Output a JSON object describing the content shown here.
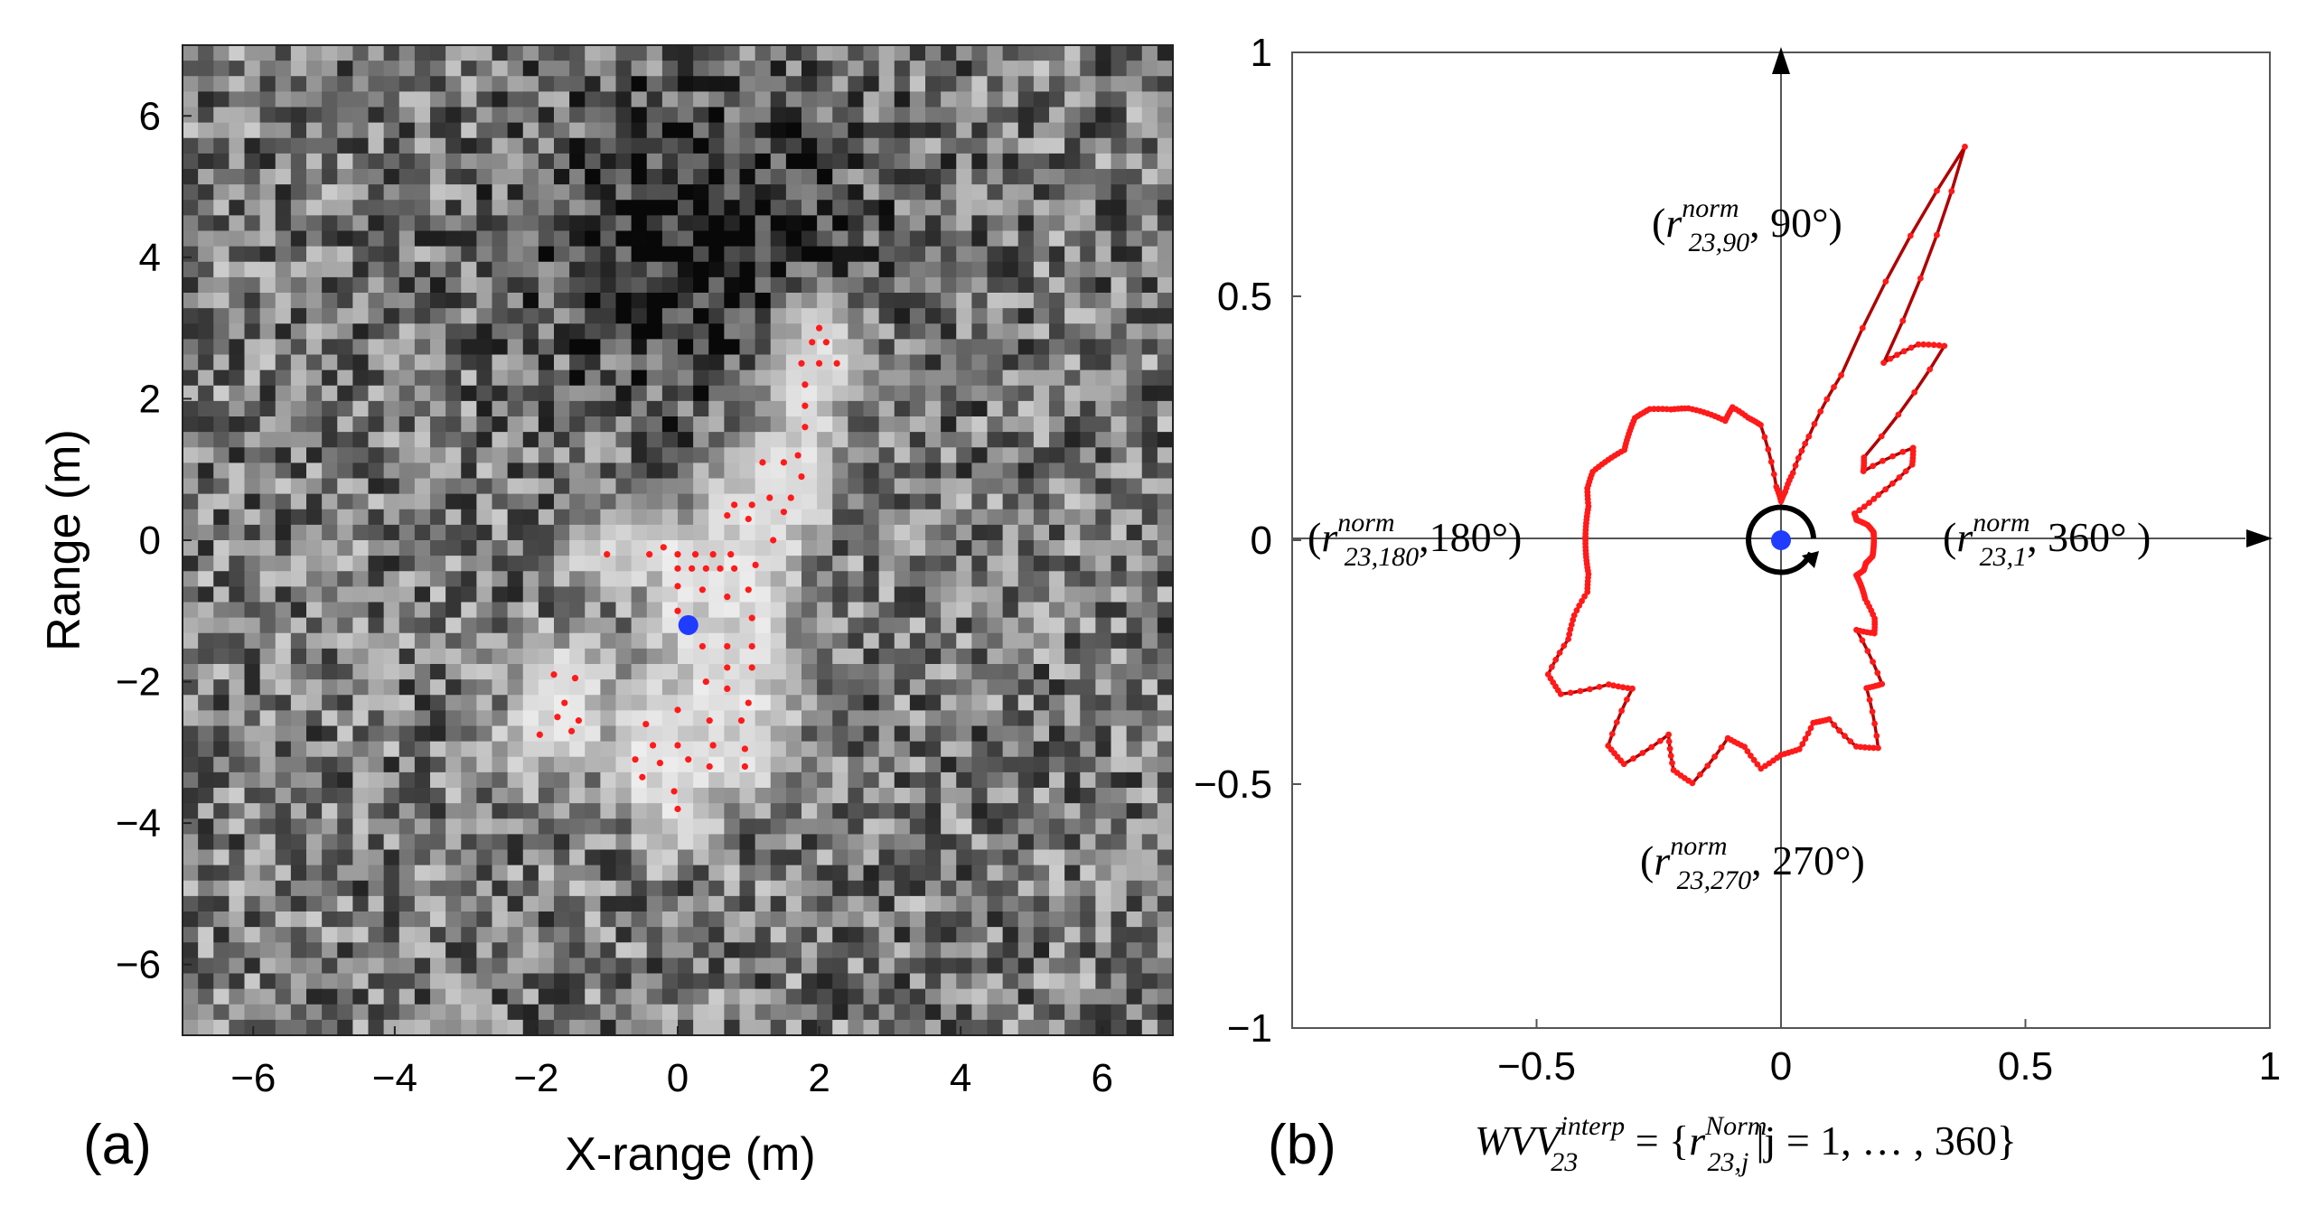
{
  "chart_data": [
    {
      "type": "heatmap",
      "panel_label": "(a)",
      "xlabel": "X-range (m)",
      "ylabel": "Range (m)",
      "xlim": [
        -7,
        7
      ],
      "ylim": [
        -7,
        7
      ],
      "xticks": [
        "−6",
        "−4",
        "−2",
        "0",
        "2",
        "4",
        "6"
      ],
      "yticks": [
        "6",
        "4",
        "2",
        "0",
        "−2",
        "−4",
        "−6"
      ],
      "colormap": "grayscale",
      "center_point": {
        "x": 0.15,
        "y": -1.2,
        "color": "#1f3cff"
      },
      "marker_color": "#ff1a1a",
      "red_points": [
        [
          2.0,
          3.0
        ],
        [
          1.9,
          2.8
        ],
        [
          2.1,
          2.8
        ],
        [
          1.75,
          2.5
        ],
        [
          2.0,
          2.5
        ],
        [
          2.25,
          2.5
        ],
        [
          1.8,
          2.2
        ],
        [
          1.8,
          1.9
        ],
        [
          1.8,
          1.6
        ],
        [
          1.7,
          1.2
        ],
        [
          1.75,
          0.9
        ],
        [
          1.5,
          1.1
        ],
        [
          1.2,
          1.1
        ],
        [
          1.6,
          0.6
        ],
        [
          1.3,
          0.6
        ],
        [
          1.05,
          0.5
        ],
        [
          0.8,
          0.5
        ],
        [
          1.5,
          0.4
        ],
        [
          0.7,
          0.35
        ],
        [
          1.0,
          0.3
        ],
        [
          1.35,
          0.0
        ],
        [
          -1.0,
          -0.2
        ],
        [
          -0.4,
          -0.2
        ],
        [
          0.0,
          -0.2
        ],
        [
          0.25,
          -0.2
        ],
        [
          0.5,
          -0.2
        ],
        [
          0.75,
          -0.2
        ],
        [
          1.1,
          -0.35
        ],
        [
          0.0,
          -0.4
        ],
        [
          0.2,
          -0.4
        ],
        [
          0.4,
          -0.4
        ],
        [
          0.6,
          -0.4
        ],
        [
          0.8,
          -0.4
        ],
        [
          -0.2,
          -0.1
        ],
        [
          0.0,
          -0.65
        ],
        [
          0.35,
          -0.7
        ],
        [
          0.7,
          -0.8
        ],
        [
          1.0,
          -0.7
        ],
        [
          0.0,
          -1.0
        ],
        [
          1.05,
          -1.1
        ],
        [
          0.35,
          -1.5
        ],
        [
          0.7,
          -1.5
        ],
        [
          1.05,
          -1.5
        ],
        [
          0.7,
          -1.8
        ],
        [
          1.05,
          -1.8
        ],
        [
          0.4,
          -2.0
        ],
        [
          0.7,
          -2.1
        ],
        [
          1.0,
          -2.3
        ],
        [
          -1.75,
          -1.9
        ],
        [
          -1.45,
          -1.95
        ],
        [
          -1.6,
          -2.3
        ],
        [
          -1.4,
          -2.55
        ],
        [
          -1.7,
          -2.5
        ],
        [
          -1.5,
          -2.7
        ],
        [
          -1.95,
          -2.75
        ],
        [
          0.0,
          -2.4
        ],
        [
          0.45,
          -2.55
        ],
        [
          0.9,
          -2.55
        ],
        [
          -0.45,
          -2.6
        ],
        [
          -0.35,
          -2.9
        ],
        [
          0.0,
          -2.9
        ],
        [
          0.5,
          -2.9
        ],
        [
          0.95,
          -2.95
        ],
        [
          -0.6,
          -3.1
        ],
        [
          0.15,
          -3.1
        ],
        [
          -0.25,
          -3.15
        ],
        [
          0.45,
          -3.2
        ],
        [
          0.95,
          -3.2
        ],
        [
          -0.5,
          -3.35
        ],
        [
          -0.05,
          -3.55
        ],
        [
          0.0,
          -3.8
        ]
      ]
    },
    {
      "type": "polar-profile",
      "panel_label": "(b)",
      "xlim": [
        -1,
        1
      ],
      "ylim": [
        -1,
        1
      ],
      "xticks": [
        "−0.5",
        "0",
        "0.5",
        "1"
      ],
      "yticks": [
        "1",
        "0.5",
        "0",
        "−0.5",
        "−1"
      ],
      "line_color": "#b00000",
      "marker_color": "#ff1a1a",
      "center_color": "#1f3cff",
      "n_points": 360,
      "profile": [
        [
          0,
          0.19
        ],
        [
          5,
          0.19
        ],
        [
          10,
          0.18
        ],
        [
          15,
          0.16
        ],
        [
          20,
          0.16
        ],
        [
          25,
          0.22
        ],
        [
          30,
          0.31
        ],
        [
          35,
          0.33
        ],
        [
          40,
          0.22
        ],
        [
          45,
          0.24
        ],
        [
          50,
          0.52
        ],
        [
          55,
          0.49
        ],
        [
          60,
          0.42
        ],
        [
          65,
          0.89
        ],
        [
          70,
          0.36
        ],
        [
          75,
          0.22
        ],
        [
          80,
          0.14
        ],
        [
          85,
          0.1
        ],
        [
          90,
          0.08
        ],
        [
          95,
          0.11
        ],
        [
          100,
          0.24
        ],
        [
          105,
          0.26
        ],
        [
          110,
          0.29
        ],
        [
          115,
          0.27
        ],
        [
          120,
          0.3
        ],
        [
          125,
          0.33
        ],
        [
          130,
          0.35
        ],
        [
          135,
          0.38
        ],
        [
          140,
          0.39
        ],
        [
          145,
          0.38
        ],
        [
          150,
          0.37
        ],
        [
          155,
          0.39
        ],
        [
          160,
          0.41
        ],
        [
          165,
          0.41
        ],
        [
          170,
          0.4
        ],
        [
          175,
          0.4
        ],
        [
          180,
          0.4
        ],
        [
          185,
          0.4
        ],
        [
          190,
          0.4
        ],
        [
          195,
          0.41
        ],
        [
          200,
          0.45
        ],
        [
          205,
          0.48
        ],
        [
          210,
          0.55
        ],
        [
          215,
          0.55
        ],
        [
          220,
          0.46
        ],
        [
          225,
          0.43
        ],
        [
          230,
          0.55
        ],
        [
          235,
          0.56
        ],
        [
          240,
          0.46
        ],
        [
          245,
          0.52
        ],
        [
          250,
          0.53
        ],
        [
          255,
          0.42
        ],
        [
          260,
          0.43
        ],
        [
          265,
          0.47
        ],
        [
          270,
          0.44
        ],
        [
          275,
          0.43
        ],
        [
          280,
          0.38
        ],
        [
          285,
          0.38
        ],
        [
          290,
          0.45
        ],
        [
          295,
          0.47
        ],
        [
          300,
          0.35
        ],
        [
          305,
          0.36
        ],
        [
          310,
          0.24
        ],
        [
          315,
          0.27
        ],
        [
          320,
          0.25
        ],
        [
          325,
          0.21
        ],
        [
          330,
          0.19
        ],
        [
          335,
          0.17
        ],
        [
          340,
          0.18
        ],
        [
          345,
          0.18
        ],
        [
          350,
          0.19
        ],
        [
          355,
          0.19
        ]
      ],
      "annotations": {
        "a90": {
          "r": "r",
          "sup": "norm",
          "sub": "23,90",
          "angle": ", 90°)"
        },
        "a180": {
          "r": "r",
          "sup": "norm",
          "sub": "23,180",
          "angle": ",180°)"
        },
        "a270": {
          "r": "r",
          "sup": "norm",
          "sub": "23,270",
          "angle": ", 270°)"
        },
        "a360": {
          "r": "r",
          "sup": "norm",
          "sub": "23,1",
          "angle": ", 360° )"
        }
      },
      "formula": {
        "lhs": "WVV",
        "lhs_sup": "interp",
        "lhs_sub": "23",
        "mid": " = {",
        "r": "r",
        "r_sup": "Norm",
        "r_sub": "23,j",
        "rest": "|j = 1, … , 360}"
      }
    }
  ]
}
